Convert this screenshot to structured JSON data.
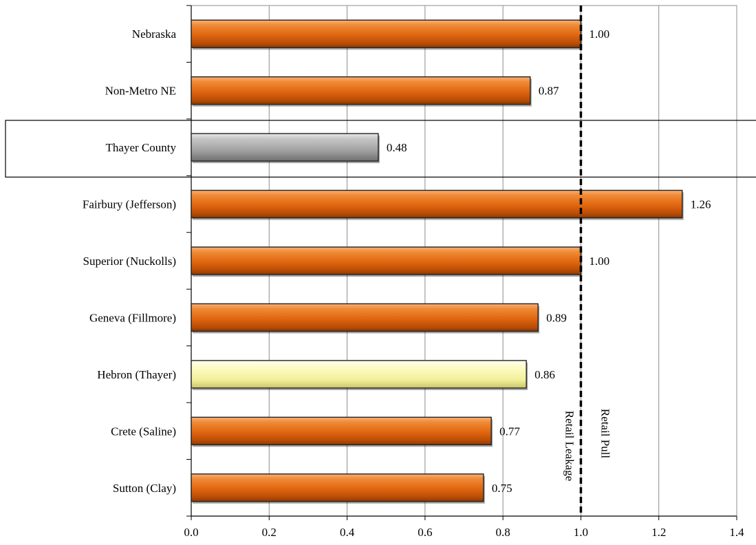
{
  "chart_data": {
    "type": "bar",
    "orientation": "horizontal",
    "title": "",
    "xlabel": "",
    "ylabel": "",
    "categories": [
      "Nebraska",
      "Non-Metro NE",
      "Thayer County",
      "Fairbury (Jefferson)",
      "Superior (Nuckolls)",
      "Geneva (Fillmore)",
      "Hebron (Thayer)",
      "Crete (Saline)",
      "Sutton (Clay)"
    ],
    "values": [
      1.0,
      0.87,
      0.48,
      1.26,
      1.0,
      0.89,
      0.86,
      0.77,
      0.75
    ],
    "value_labels": [
      "1.00",
      "0.87",
      "0.48",
      "1.26",
      "1.00",
      "0.89",
      "0.86",
      "0.77",
      "0.75"
    ],
    "bar_colors": [
      "#e8701a",
      "#e8701a",
      "#a6a6a6",
      "#e8701a",
      "#e8701a",
      "#e8701a",
      "#f5f2a0",
      "#e8701a",
      "#e8701a"
    ],
    "highlighted_category": "Thayer County",
    "xlim": [
      0,
      1.4
    ],
    "x_ticks": [
      "0.0",
      "0.2",
      "0.4",
      "0.6",
      "0.8",
      "1.0",
      "1.2",
      "1.4"
    ],
    "grid": "vertical",
    "reference_line": {
      "value": 1.0,
      "style": "dashed",
      "label_left": "Retail Leakage",
      "label_right": "Retail Pull"
    }
  }
}
